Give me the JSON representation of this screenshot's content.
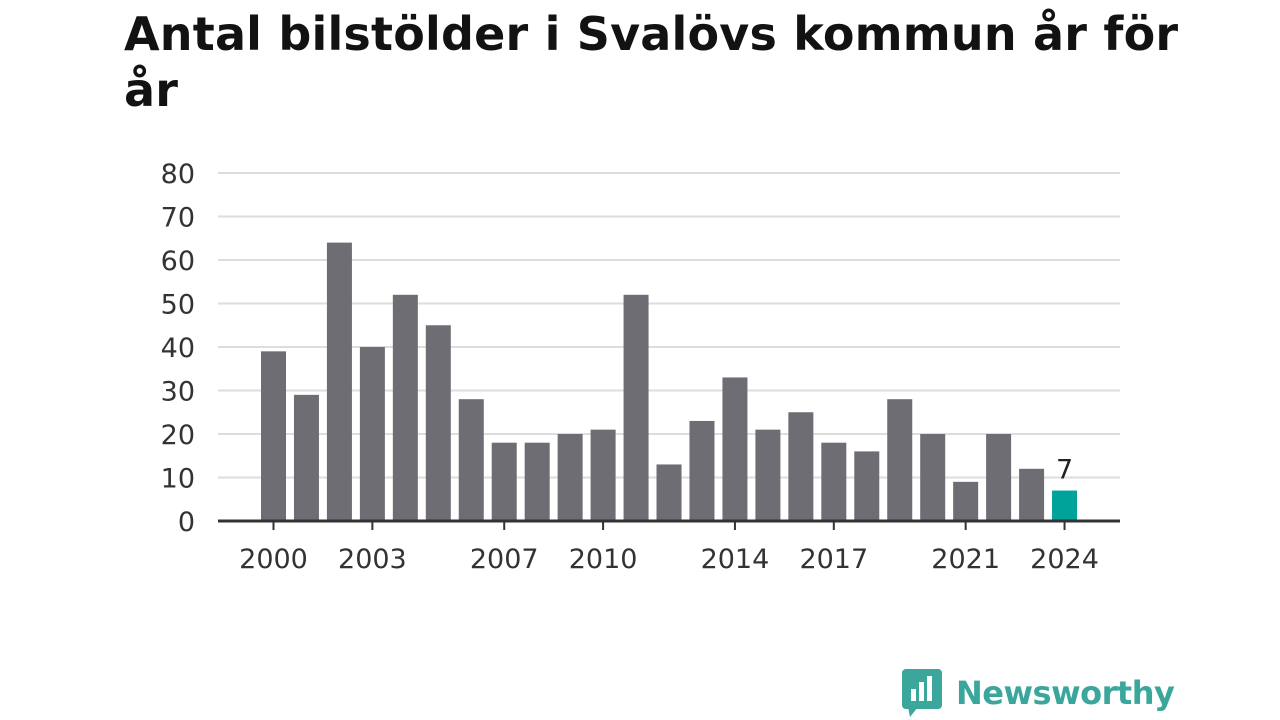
{
  "chart_data": {
    "type": "bar",
    "title": "Antal bilstölder i Svalövs kommun år för år",
    "xlabel": "",
    "ylabel": "",
    "categories": [
      "2000",
      "2001",
      "2002",
      "2003",
      "2004",
      "2005",
      "2006",
      "2007",
      "2008",
      "2009",
      "2010",
      "2011",
      "2012",
      "2013",
      "2014",
      "2015",
      "2016",
      "2017",
      "2018",
      "2019",
      "2020",
      "2021",
      "2022",
      "2023",
      "2024"
    ],
    "values": [
      39,
      29,
      64,
      40,
      52,
      45,
      28,
      18,
      18,
      20,
      21,
      52,
      13,
      23,
      33,
      21,
      25,
      18,
      16,
      28,
      20,
      9,
      20,
      12,
      7
    ],
    "x_tick_labels": [
      "2000",
      "2003",
      "2007",
      "2010",
      "2014",
      "2017",
      "2021",
      "2024"
    ],
    "y_ticks": [
      0,
      10,
      20,
      30,
      40,
      50,
      60,
      70,
      80
    ],
    "ylim": [
      0,
      80
    ],
    "grid": true,
    "highlight": {
      "category": "2024",
      "label": "7"
    },
    "colors": {
      "bar": "#6e6d73",
      "highlight": "#00a39a",
      "grid": "#dddddd",
      "axis": "#333333"
    }
  },
  "brand": {
    "name": "Newsworthy",
    "logo_icon": "bar-chart-speech-bubble-icon",
    "color": "#3aa69c"
  }
}
